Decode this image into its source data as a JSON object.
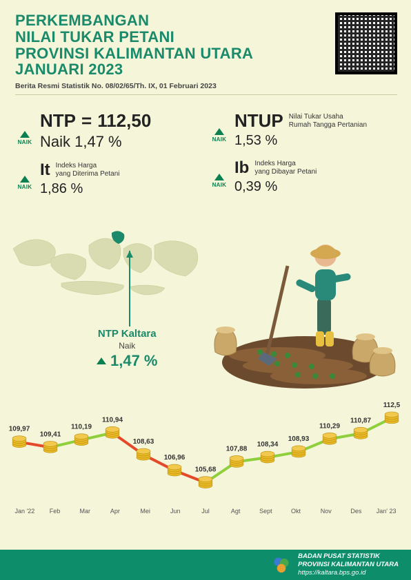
{
  "header": {
    "title_l1": "PERKEMBANGAN",
    "title_l2": "NILAI TUKAR PETANI",
    "title_l3": "PROVINSI KALIMANTAN UTARA",
    "title_l4": "JANUARI 2023",
    "subtitle": "Berita Resmi Statistik No. 08/02/65/Th. IX, 01 Februari 2023",
    "title_color": "#1a8a6a"
  },
  "stats": {
    "ntp": {
      "label": "NTP",
      "value": "112,50",
      "change_label": "Naik 1,47 %",
      "arrow_label": "NAIK"
    },
    "it": {
      "label": "It",
      "desc_l1": "Indeks Harga",
      "desc_l2": "yang Diterima Petani",
      "pct": "1,86 %",
      "arrow_label": "NAIK"
    },
    "ntup": {
      "label": "NTUP",
      "desc_l1": "Nilai Tukar Usaha",
      "desc_l2": "Rumah Tangga Pertanian",
      "pct": "1,53 %",
      "arrow_label": "NAIK"
    },
    "ib": {
      "label": "Ib",
      "desc_l1": "Indeks Harga",
      "desc_l2": "yang Dibayar Petani",
      "pct": "0,39 %",
      "arrow_label": "NAIK"
    }
  },
  "map_callout": {
    "title": "NTP Kaltara",
    "sub": "Naik",
    "pct": "1,47 %"
  },
  "chart": {
    "type": "line",
    "x_labels": [
      "Jan '22",
      "Feb",
      "Mar",
      "Apr",
      "Mei",
      "Jun",
      "Jul",
      "Agt",
      "Sept",
      "Okt",
      "Nov",
      "Des",
      "Jan' 23"
    ],
    "values": [
      109.97,
      109.41,
      110.19,
      110.94,
      108.63,
      106.96,
      105.68,
      107.88,
      108.34,
      108.93,
      110.29,
      110.87,
      112.5
    ],
    "value_labels": [
      "109,97",
      "109,41",
      "110,19",
      "110,94",
      "108,63",
      "106,96",
      "105,68",
      "107,88",
      "108,34",
      "108,93",
      "110,29",
      "110,87",
      "112,5"
    ],
    "ylim": [
      105,
      113
    ],
    "up_color": "#8fcf3c",
    "down_color": "#e44a2a",
    "marker_color": "#e9b926",
    "text_color": "#333333",
    "label_fontsize": 10,
    "axis_fontsize": 9
  },
  "colors": {
    "background": "#f4f5d9",
    "accent_green": "#1a8a6a",
    "arrow_green": "#0a8050",
    "footer_bg": "#0e8d6a"
  },
  "footer": {
    "line1": "BADAN PUSAT STATISTIK",
    "line2": "PROVINSI KALIMANTAN UTARA",
    "url": "https://kaltara.bps.go.id"
  }
}
